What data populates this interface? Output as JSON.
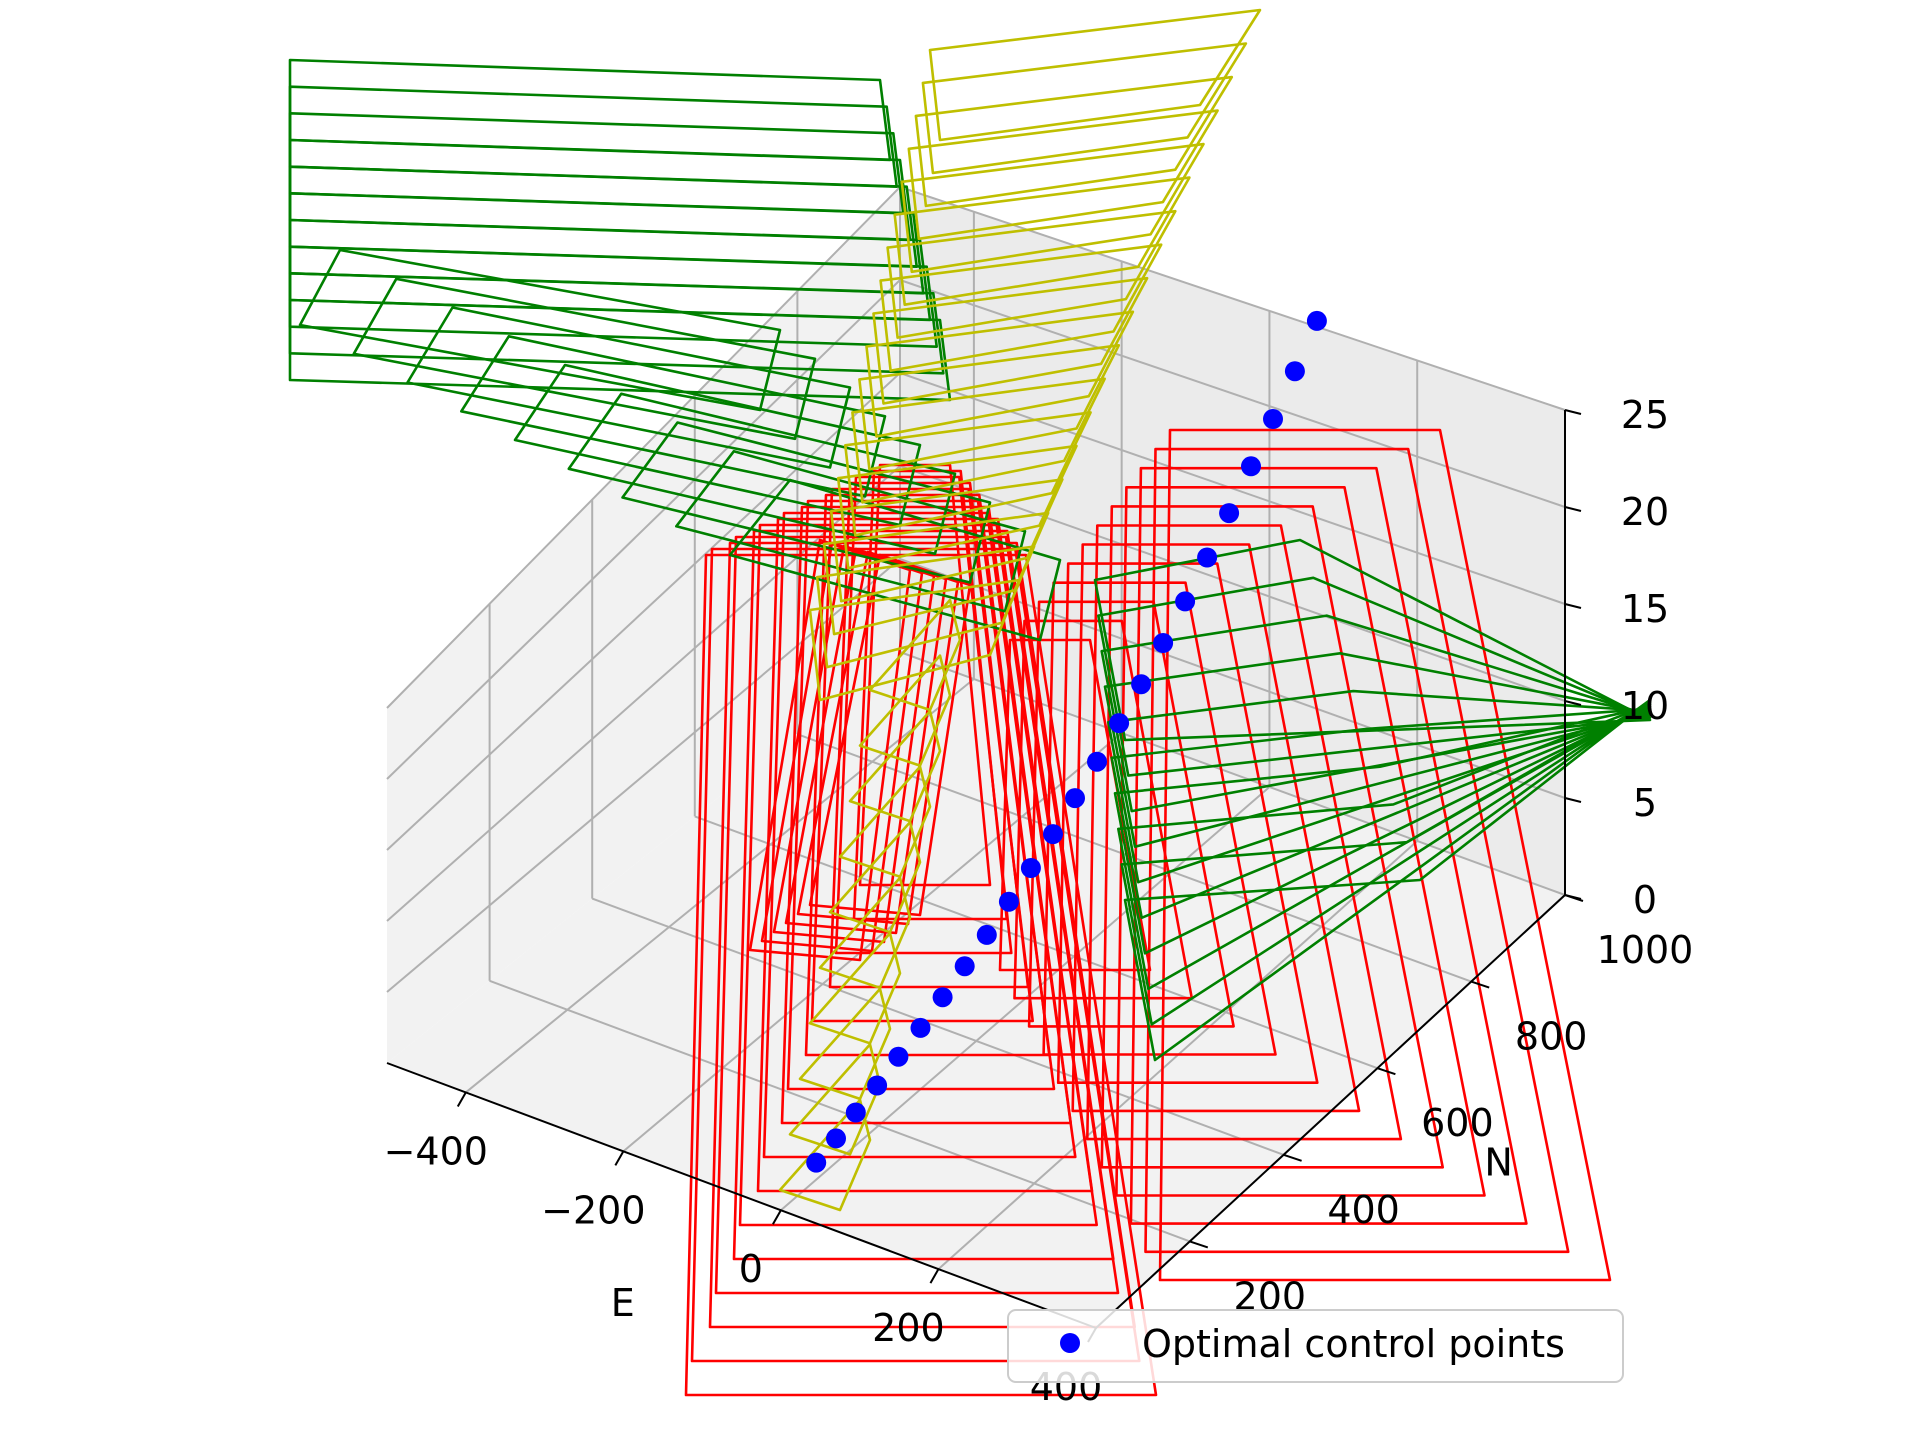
{
  "chart_data": {
    "type": "3d-scatter-with-wireframes",
    "axes": {
      "x": {
        "label": "E",
        "ticks": [
          "−400",
          "−200",
          "0",
          "200",
          "400"
        ],
        "range": [
          -500,
          400
        ]
      },
      "y": {
        "label": "N",
        "ticks": [
          "200",
          "400",
          "600",
          "800",
          "1000"
        ],
        "range": [
          0,
          1000
        ]
      },
      "z": {
        "label": "",
        "ticks": [
          "0",
          "5",
          "10",
          "15",
          "20",
          "25"
        ],
        "range": [
          0,
          25
        ]
      }
    },
    "grid": true,
    "legend": {
      "placement": "lower-right",
      "entries": [
        {
          "label": "Optimal control points",
          "color": "#0000ff",
          "marker": "circle"
        }
      ]
    },
    "series": [
      {
        "name": "Optimal control points",
        "color": "#0000ff",
        "points": [
          {
            "E": -16,
            "N": 98,
            "U": 0.1
          },
          {
            "E": -17,
            "N": 140,
            "U": 0.5
          },
          {
            "E": -18,
            "N": 182,
            "U": 1.0
          },
          {
            "E": -17,
            "N": 224,
            "U": 1.6
          },
          {
            "E": -16,
            "N": 266,
            "U": 2.3
          },
          {
            "E": -14,
            "N": 308,
            "U": 3.0
          },
          {
            "E": -12,
            "N": 350,
            "U": 3.8
          },
          {
            "E": -10,
            "N": 392,
            "U": 4.6
          },
          {
            "E": -8,
            "N": 434,
            "U": 5.4
          },
          {
            "E": -6,
            "N": 476,
            "U": 6.3
          },
          {
            "E": -4,
            "N": 518,
            "U": 7.2
          },
          {
            "E": -2,
            "N": 560,
            "U": 8.1
          },
          {
            "E": 0,
            "N": 602,
            "U": 9.1
          },
          {
            "E": 2,
            "N": 644,
            "U": 10.1
          },
          {
            "E": 4,
            "N": 686,
            "U": 11.2
          },
          {
            "E": 6,
            "N": 728,
            "U": 12.3
          },
          {
            "E": 8,
            "N": 770,
            "U": 13.5
          },
          {
            "E": 10,
            "N": 812,
            "U": 14.7
          },
          {
            "E": 12,
            "N": 854,
            "U": 16.0
          },
          {
            "E": 14,
            "N": 896,
            "U": 17.3
          },
          {
            "E": 16,
            "N": 938,
            "U": 18.7
          },
          {
            "E": 18,
            "N": 980,
            "U": 20.1
          },
          {
            "E": 20,
            "N": 1022,
            "U": 21.5
          },
          {
            "E": 22,
            "N": 1064,
            "U": 23.0
          }
        ]
      }
    ],
    "wireframe_colors": {
      "red": "#ff0000",
      "green": "#008000",
      "yellow": "#bfbf00"
    }
  }
}
